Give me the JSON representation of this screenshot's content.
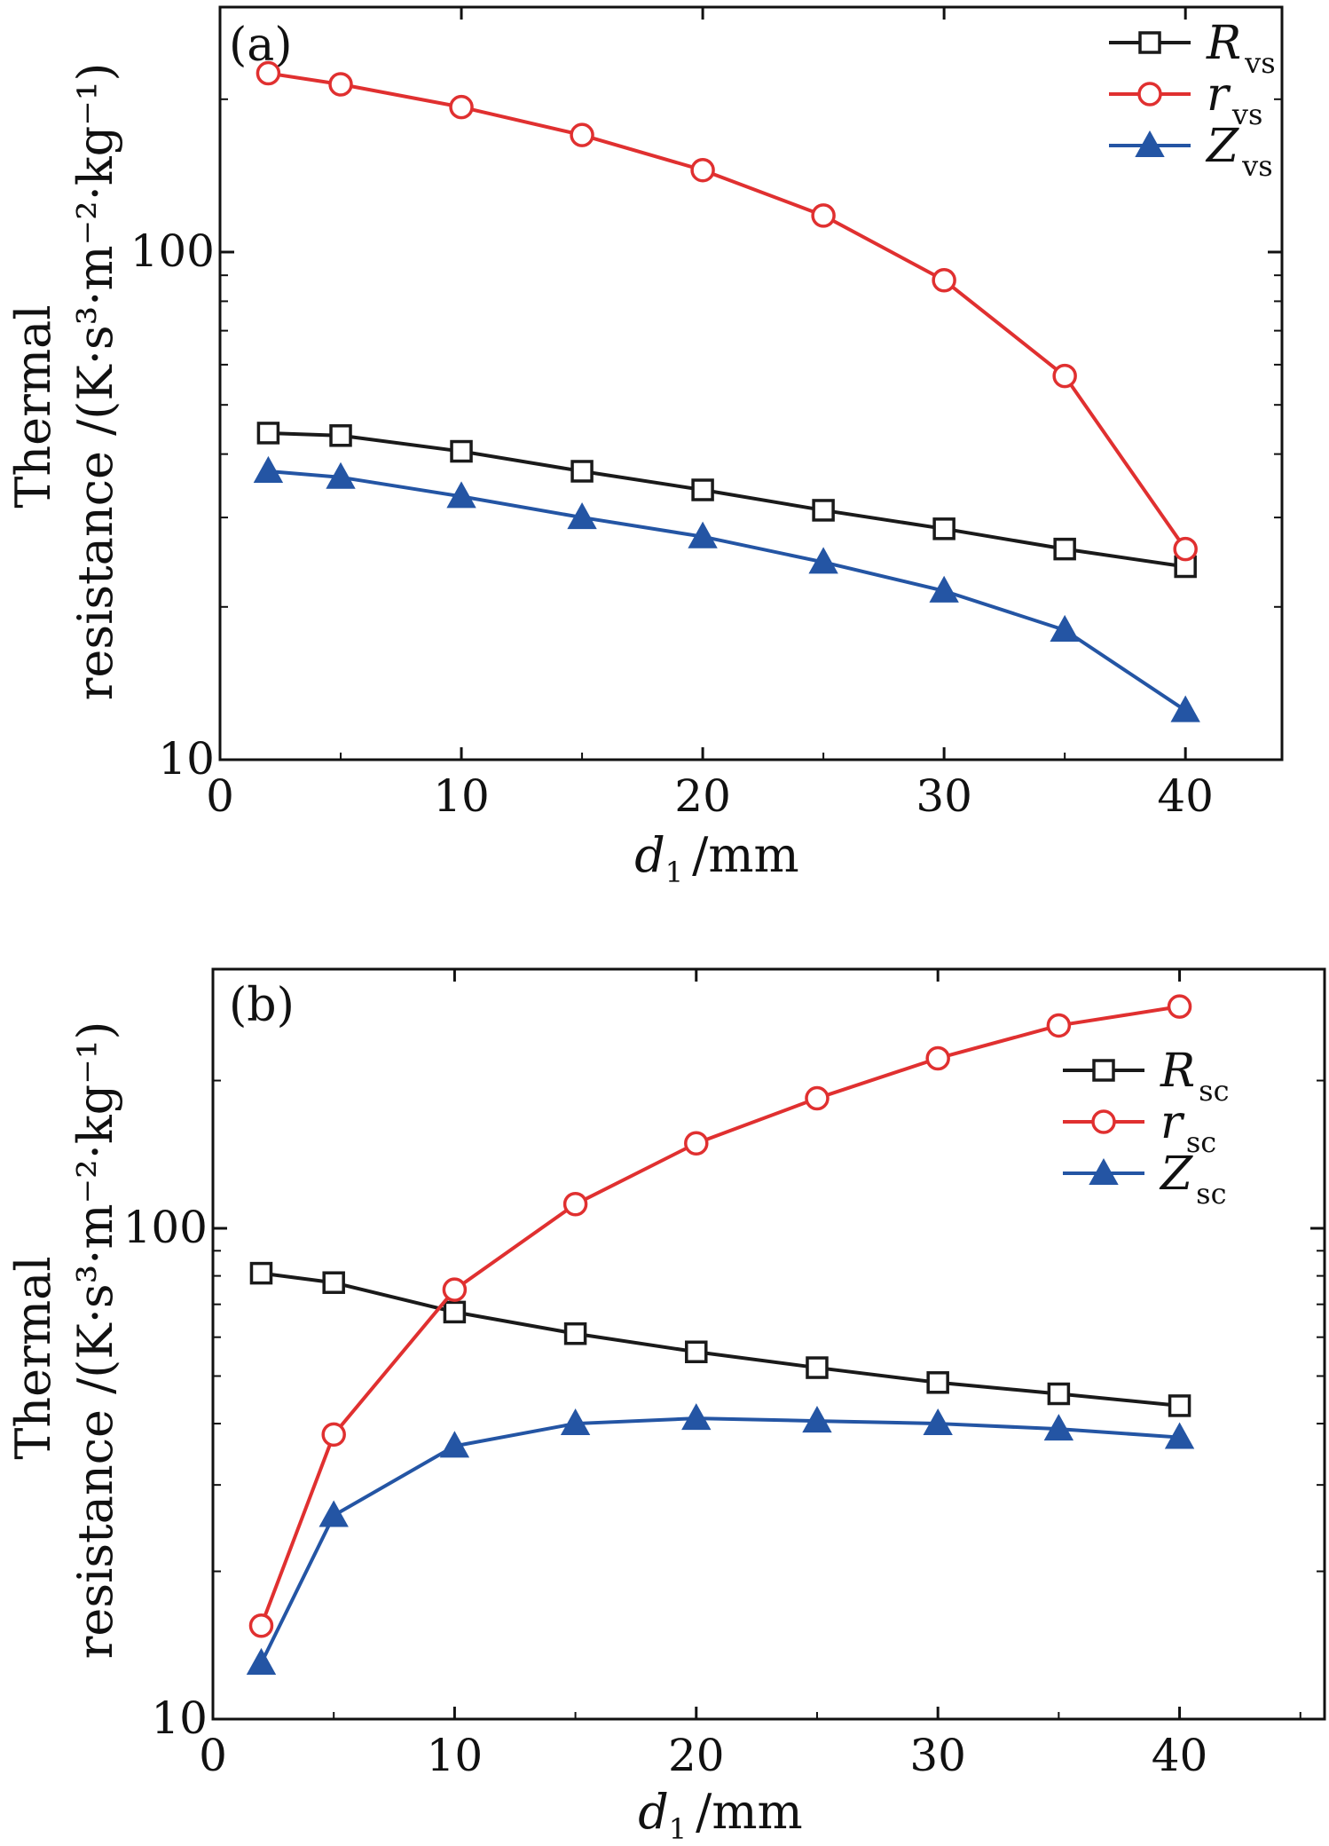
{
  "chart_data": [
    {
      "type": "line",
      "panel_label": "(a)",
      "xlabel": "d",
      "xlabel_sub": "1",
      "xlabel_unit": "/mm",
      "ylabel_line1": "Thermal",
      "ylabel_line2": "resistance /(K·s³·m⁻²·kg⁻¹)",
      "xlim": [
        0,
        44
      ],
      "ylim": [
        10,
        300
      ],
      "yscale": "log",
      "xticks": [
        0,
        10,
        20,
        30,
        40
      ],
      "xtick_labels": [
        "0",
        "10",
        "20",
        "30",
        "40"
      ],
      "yticks": [
        10,
        100
      ],
      "ytick_labels": [
        "10",
        "100"
      ],
      "legend_position": "top-right",
      "x": [
        2,
        5,
        10,
        15,
        20,
        25,
        30,
        35,
        40
      ],
      "series": [
        {
          "name": "R",
          "sub": "vs",
          "marker": "square",
          "color": "#1a1a1a",
          "values": [
            44,
            43.5,
            40.5,
            37,
            34,
            31,
            28.5,
            26,
            24
          ]
        },
        {
          "name": "r",
          "sub": "vs",
          "marker": "circle",
          "color": "#e03030",
          "values": [
            225,
            214,
            193,
            170,
            145,
            118,
            88,
            57,
            26
          ]
        },
        {
          "name": "Z",
          "sub": "vs",
          "marker": "triangle",
          "color": "#2455a4",
          "values": [
            37,
            36,
            33,
            30,
            27.5,
            24.5,
            21.5,
            18,
            12.5
          ]
        }
      ]
    },
    {
      "type": "line",
      "panel_label": "(b)",
      "xlabel": "d",
      "xlabel_sub": "1",
      "xlabel_unit": "/mm",
      "ylabel_line1": "Thermal",
      "ylabel_line2": "resistance /(K·s³·m⁻²·kg⁻¹)",
      "xlim": [
        0,
        46
      ],
      "ylim": [
        10,
        300
      ],
      "yscale": "log",
      "xticks": [
        0,
        10,
        20,
        30,
        40
      ],
      "xtick_labels": [
        "0",
        "10",
        "20",
        "30",
        "40"
      ],
      "yticks": [
        10,
        100
      ],
      "ytick_labels": [
        "10",
        "100"
      ],
      "legend_position": "right",
      "x": [
        2,
        5,
        10,
        15,
        20,
        25,
        30,
        35,
        40
      ],
      "series": [
        {
          "name": "R",
          "sub": "sc",
          "marker": "square",
          "color": "#1a1a1a",
          "values": [
            81,
            77.5,
            67.5,
            61,
            56,
            52,
            48.5,
            46,
            43.5
          ]
        },
        {
          "name": "r",
          "sub": "sc",
          "marker": "circle",
          "color": "#e03030",
          "values": [
            15.5,
            38,
            75,
            112,
            149,
            184,
            222,
            259,
            283
          ]
        },
        {
          "name": "Z",
          "sub": "sc",
          "marker": "triangle",
          "color": "#2455a4",
          "values": [
            13,
            26,
            36,
            40,
            41,
            40.5,
            40,
            39,
            37.5
          ]
        }
      ]
    }
  ]
}
